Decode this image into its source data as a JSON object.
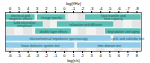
{
  "chart_data": {
    "type": "timeline",
    "xlabel": "log(τ/s)",
    "x2label": "log(f/Hz)",
    "xlim": [
      -6.5,
      8.5
    ],
    "xticks": [
      -6,
      -5,
      -4,
      -3,
      -2,
      -1,
      0,
      1,
      2,
      3,
      4,
      5,
      6,
      7,
      8
    ],
    "x2ticks": [
      {
        "value": -6,
        "label": "6"
      },
      {
        "value": -5,
        "label": "5"
      },
      {
        "value": -4,
        "label": "4"
      },
      {
        "value": -3,
        "label": "3"
      },
      {
        "value": -2,
        "label": "2"
      },
      {
        "value": -1,
        "label": "1"
      },
      {
        "value": 0,
        "label": "0"
      },
      {
        "value": 1,
        "label": "-1"
      },
      {
        "value": 2,
        "label": "-2"
      },
      {
        "value": 3,
        "label": "-3"
      },
      {
        "value": 4,
        "label": "-4"
      },
      {
        "value": 5,
        "label": "-5"
      },
      {
        "value": 6,
        "label": "-6"
      },
      {
        "value": 7,
        "label": "-7"
      },
      {
        "value": 8,
        "label": "-8"
      }
    ],
    "tick_labels": "x",
    "rows": [
      [
        {
          "label": "electrical and\nmagnetic effects",
          "start": -6.5,
          "end": -3.2,
          "color": "#5bbfb5"
        },
        {
          "label": "charge transfer",
          "start": -3.0,
          "end": 0.2,
          "color": "#5bbfb5"
        },
        {
          "label": "heat transfer and\nheat capacity",
          "start": 2.3,
          "end": 8.5,
          "color": "#5bbfb5"
        }
      ],
      [
        {
          "label": "solid electrolyte\ninterphase",
          "start": -6.5,
          "end": -2.3,
          "color": "#5bbfb5"
        },
        {
          "label": "relaxation and diffusion",
          "start": -0.8,
          "end": 5.5,
          "color": "#5bbfb5"
        }
      ],
      [
        {
          "label": "double layer effects",
          "start": -3.2,
          "end": 0.8,
          "color": "#5bbfb5"
        },
        {
          "label": "degradation and aging",
          "start": 4.5,
          "end": 8.5,
          "color": "#5bbfb5"
        }
      ],
      [
        {
          "label": "electrochemical impedance spectroscopy",
          "start": -6.5,
          "end": 5.2,
          "color": "#90cce8"
        },
        {
          "label": "cyclic and calendar test",
          "start": 5.4,
          "end": 8.5,
          "color": "#90cce8"
        }
      ],
      [
        {
          "label": "linear dielectric system test",
          "start": -6.5,
          "end": 1.2,
          "color": "#90cce8"
        },
        {
          "label": "time domain test",
          "start": 1.4,
          "end": 8.5,
          "color": "#90cce8"
        }
      ]
    ]
  }
}
